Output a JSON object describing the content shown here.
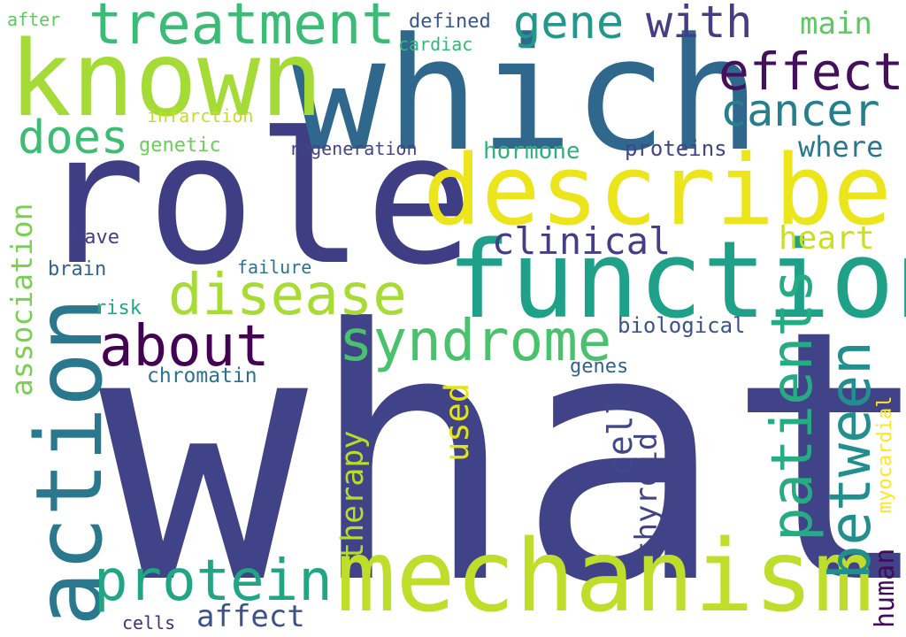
{
  "words": [
    {
      "id": "what",
      "text": "what",
      "color": "#404387"
    },
    {
      "id": "role",
      "text": "role",
      "color": "#3f3e84"
    },
    {
      "id": "which",
      "text": "which",
      "color": "#30678d"
    },
    {
      "id": "known",
      "text": "known",
      "color": "#a5db36"
    },
    {
      "id": "describe",
      "text": "describe",
      "color": "#ece51b"
    },
    {
      "id": "function",
      "text": "function",
      "color": "#1fa088"
    },
    {
      "id": "mechanism",
      "text": "mechanism",
      "color": "#bede2b"
    },
    {
      "id": "action",
      "text": "action",
      "color": "#2a788e"
    },
    {
      "id": "treatment",
      "text": "treatment",
      "color": "#3bbb75"
    },
    {
      "id": "syndrome",
      "text": "syndrome",
      "color": "#4ac16d"
    },
    {
      "id": "protein",
      "text": "protein",
      "color": "#21a585"
    },
    {
      "id": "disease",
      "text": "disease",
      "color": "#a8db34"
    },
    {
      "id": "about",
      "text": "about",
      "color": "#440154"
    },
    {
      "id": "between",
      "text": "between",
      "color": "#218f8d"
    },
    {
      "id": "patients",
      "text": "patients",
      "color": "#25ac82"
    },
    {
      "id": "effect",
      "text": "effect",
      "color": "#440f5c"
    },
    {
      "id": "gene",
      "text": "gene",
      "color": "#22978c"
    },
    {
      "id": "with",
      "text": "with",
      "color": "#433e85"
    },
    {
      "id": "cancer",
      "text": "cancer",
      "color": "#25808e"
    },
    {
      "id": "does",
      "text": "does",
      "color": "#3dbc74"
    },
    {
      "id": "clinical",
      "text": "clinical",
      "color": "#433e85"
    },
    {
      "id": "heart",
      "text": "heart",
      "color": "#c8e020"
    },
    {
      "id": "association",
      "text": "association",
      "color": "#7ad151"
    },
    {
      "id": "main",
      "text": "main",
      "color": "#5ec962"
    },
    {
      "id": "where",
      "text": "where",
      "color": "#2a768e"
    },
    {
      "id": "used",
      "text": "used",
      "color": "#e2e418"
    },
    {
      "id": "cell",
      "text": "cell",
      "color": "#3f4889"
    },
    {
      "id": "therapy",
      "text": "therapy",
      "color": "#b5de2b"
    },
    {
      "id": "thyroid",
      "text": "thyroid",
      "color": "#414487"
    },
    {
      "id": "human",
      "text": "human",
      "color": "#460a5d"
    },
    {
      "id": "affect",
      "text": "affect",
      "color": "#3b528b"
    },
    {
      "id": "myocardial",
      "text": "myocardial",
      "color": "#fde725"
    },
    {
      "id": "hormone",
      "text": "hormone",
      "color": "#2db27d"
    },
    {
      "id": "proteins",
      "text": "proteins",
      "color": "#414487"
    },
    {
      "id": "biological",
      "text": "biological",
      "color": "#3b528b"
    },
    {
      "id": "chromatin",
      "text": "chromatin",
      "color": "#2d708e"
    },
    {
      "id": "genes",
      "text": "genes",
      "color": "#355f8d"
    },
    {
      "id": "genetic",
      "text": "genetic",
      "color": "#6ccd5a"
    },
    {
      "id": "infarction",
      "text": "infarction",
      "color": "#c2df23"
    },
    {
      "id": "regeneration",
      "text": "regeneration",
      "color": "#414487"
    },
    {
      "id": "defined",
      "text": "defined",
      "color": "#39568c"
    },
    {
      "id": "cardiac",
      "text": "cardiac",
      "color": "#35b779"
    },
    {
      "id": "after",
      "text": "after",
      "color": "#5ec962"
    },
    {
      "id": "have",
      "text": "have",
      "color": "#433e85"
    },
    {
      "id": "brain",
      "text": "brain",
      "color": "#33638d"
    },
    {
      "id": "risk",
      "text": "risk",
      "color": "#22a884"
    },
    {
      "id": "failure",
      "text": "failure",
      "color": "#2c728e"
    },
    {
      "id": "cells",
      "text": "cells",
      "color": "#472d7b"
    }
  ]
}
